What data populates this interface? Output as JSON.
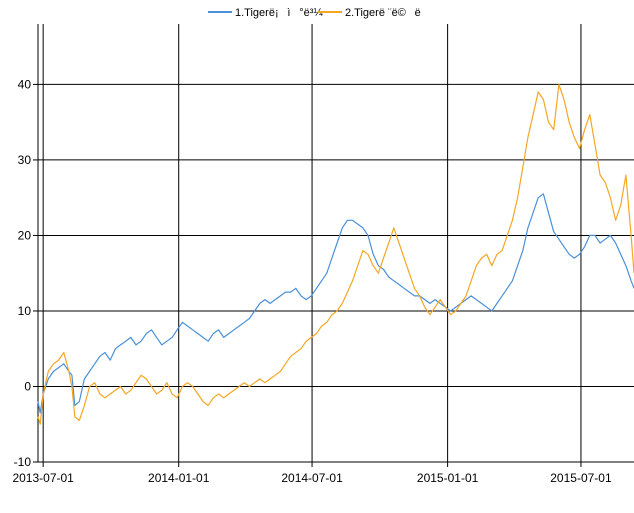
{
  "chart_data": {
    "type": "line",
    "title": "",
    "xlabel": "",
    "ylabel": "",
    "x_range": [
      "2013-06-24",
      "2015-09-11"
    ],
    "x_ticks": [
      "2013-07-01",
      "2014-01-01",
      "2014-07-01",
      "2015-01-01",
      "2015-07-01"
    ],
    "ylim": [
      -10,
      48
    ],
    "y_ticks": [
      -10,
      0,
      10,
      20,
      30,
      40
    ],
    "grid": true,
    "legend_position": "top-center",
    "series": [
      {
        "name": "1.Tigerë¡ì°ë³¼",
        "color": "#4a90d9",
        "points": [
          [
            "2013-06-24",
            -2
          ],
          [
            "2013-06-27",
            -3.5
          ],
          [
            "2013-07-01",
            -1
          ],
          [
            "2013-07-08",
            1
          ],
          [
            "2013-07-15",
            2
          ],
          [
            "2013-07-22",
            2.5
          ],
          [
            "2013-07-29",
            3
          ],
          [
            "2013-08-05",
            2
          ],
          [
            "2013-08-09",
            1.5
          ],
          [
            "2013-08-13",
            -2.5
          ],
          [
            "2013-08-19",
            -2
          ],
          [
            "2013-08-26",
            1
          ],
          [
            "2013-09-02",
            2
          ],
          [
            "2013-09-09",
            3
          ],
          [
            "2013-09-16",
            4
          ],
          [
            "2013-09-23",
            4.5
          ],
          [
            "2013-09-30",
            3.5
          ],
          [
            "2013-10-07",
            5
          ],
          [
            "2013-10-14",
            5.5
          ],
          [
            "2013-10-21",
            6
          ],
          [
            "2013-10-28",
            6.5
          ],
          [
            "2013-11-04",
            5.5
          ],
          [
            "2013-11-11",
            6
          ],
          [
            "2013-11-18",
            7
          ],
          [
            "2013-11-25",
            7.5
          ],
          [
            "2013-12-02",
            6.5
          ],
          [
            "2013-12-09",
            5.5
          ],
          [
            "2013-12-16",
            6
          ],
          [
            "2013-12-23",
            6.5
          ],
          [
            "2013-12-30",
            7.5
          ],
          [
            "2014-01-06",
            8.5
          ],
          [
            "2014-01-13",
            8
          ],
          [
            "2014-01-20",
            7.5
          ],
          [
            "2014-01-27",
            7
          ],
          [
            "2014-02-03",
            6.5
          ],
          [
            "2014-02-10",
            6
          ],
          [
            "2014-02-17",
            7
          ],
          [
            "2014-02-24",
            7.5
          ],
          [
            "2014-03-03",
            6.5
          ],
          [
            "2014-03-10",
            7
          ],
          [
            "2014-03-17",
            7.5
          ],
          [
            "2014-03-24",
            8
          ],
          [
            "2014-03-31",
            8.5
          ],
          [
            "2014-04-07",
            9
          ],
          [
            "2014-04-14",
            10
          ],
          [
            "2014-04-21",
            11
          ],
          [
            "2014-04-28",
            11.5
          ],
          [
            "2014-05-05",
            11
          ],
          [
            "2014-05-12",
            11.5
          ],
          [
            "2014-05-19",
            12
          ],
          [
            "2014-05-26",
            12.5
          ],
          [
            "2014-06-02",
            12.5
          ],
          [
            "2014-06-09",
            13
          ],
          [
            "2014-06-16",
            12
          ],
          [
            "2014-06-23",
            11.5
          ],
          [
            "2014-06-30",
            12
          ],
          [
            "2014-07-07",
            13
          ],
          [
            "2014-07-14",
            14
          ],
          [
            "2014-07-21",
            15
          ],
          [
            "2014-07-28",
            17
          ],
          [
            "2014-08-04",
            19
          ],
          [
            "2014-08-11",
            21
          ],
          [
            "2014-08-18",
            22
          ],
          [
            "2014-08-25",
            22
          ],
          [
            "2014-09-01",
            21.5
          ],
          [
            "2014-09-08",
            21
          ],
          [
            "2014-09-15",
            20
          ],
          [
            "2014-09-22",
            17.5
          ],
          [
            "2014-09-29",
            16
          ],
          [
            "2014-10-06",
            15.5
          ],
          [
            "2014-10-13",
            14.5
          ],
          [
            "2014-10-20",
            14
          ],
          [
            "2014-10-27",
            13.5
          ],
          [
            "2014-11-03",
            13
          ],
          [
            "2014-11-10",
            12.5
          ],
          [
            "2014-11-17",
            12
          ],
          [
            "2014-11-24",
            12
          ],
          [
            "2014-12-01",
            11.5
          ],
          [
            "2014-12-08",
            11
          ],
          [
            "2014-12-15",
            11.5
          ],
          [
            "2014-12-22",
            11
          ],
          [
            "2014-12-29",
            10.5
          ],
          [
            "2015-01-05",
            10
          ],
          [
            "2015-01-12",
            10.5
          ],
          [
            "2015-01-19",
            11
          ],
          [
            "2015-01-26",
            11.5
          ],
          [
            "2015-02-02",
            12
          ],
          [
            "2015-02-09",
            11.5
          ],
          [
            "2015-02-16",
            11
          ],
          [
            "2015-02-23",
            10.5
          ],
          [
            "2015-03-02",
            10
          ],
          [
            "2015-03-09",
            11
          ],
          [
            "2015-03-16",
            12
          ],
          [
            "2015-03-23",
            13
          ],
          [
            "2015-03-30",
            14
          ],
          [
            "2015-04-06",
            16
          ],
          [
            "2015-04-13",
            18
          ],
          [
            "2015-04-20",
            21
          ],
          [
            "2015-04-27",
            23
          ],
          [
            "2015-05-04",
            25
          ],
          [
            "2015-05-11",
            25.5
          ],
          [
            "2015-05-18",
            23
          ],
          [
            "2015-05-25",
            20.5
          ],
          [
            "2015-06-01",
            19.5
          ],
          [
            "2015-06-08",
            18.5
          ],
          [
            "2015-06-15",
            17.5
          ],
          [
            "2015-06-22",
            17
          ],
          [
            "2015-06-29",
            17.5
          ],
          [
            "2015-07-06",
            18.5
          ],
          [
            "2015-07-13",
            20
          ],
          [
            "2015-07-20",
            20
          ],
          [
            "2015-07-27",
            19
          ],
          [
            "2015-08-03",
            19.5
          ],
          [
            "2015-08-10",
            20
          ],
          [
            "2015-08-17",
            19
          ],
          [
            "2015-08-24",
            17.5
          ],
          [
            "2015-08-31",
            16
          ],
          [
            "2015-09-07",
            14
          ],
          [
            "2015-09-11",
            13
          ]
        ]
      },
      {
        "name": "2.Tigerë ¨ë©ë",
        "color": "#f5a623",
        "points": [
          [
            "2013-06-24",
            -4
          ],
          [
            "2013-06-27",
            -5
          ],
          [
            "2013-07-01",
            -1
          ],
          [
            "2013-07-08",
            2
          ],
          [
            "2013-07-15",
            3
          ],
          [
            "2013-07-22",
            3.5
          ],
          [
            "2013-07-29",
            4.5
          ],
          [
            "2013-08-05",
            2
          ],
          [
            "2013-08-09",
            0
          ],
          [
            "2013-08-13",
            -4
          ],
          [
            "2013-08-19",
            -4.5
          ],
          [
            "2013-08-26",
            -2.5
          ],
          [
            "2013-09-02",
            0
          ],
          [
            "2013-09-09",
            0.5
          ],
          [
            "2013-09-16",
            -1
          ],
          [
            "2013-09-23",
            -1.5
          ],
          [
            "2013-09-30",
            -1
          ],
          [
            "2013-10-07",
            -0.5
          ],
          [
            "2013-10-14",
            0
          ],
          [
            "2013-10-21",
            -1
          ],
          [
            "2013-10-28",
            -0.5
          ],
          [
            "2013-11-04",
            0.5
          ],
          [
            "2013-11-11",
            1.5
          ],
          [
            "2013-11-18",
            1
          ],
          [
            "2013-11-25",
            0
          ],
          [
            "2013-12-02",
            -1
          ],
          [
            "2013-12-09",
            -0.5
          ],
          [
            "2013-12-16",
            0.5
          ],
          [
            "2013-12-23",
            -1
          ],
          [
            "2013-12-30",
            -1.5
          ],
          [
            "2014-01-06",
            0
          ],
          [
            "2014-01-13",
            0.5
          ],
          [
            "2014-01-20",
            0
          ],
          [
            "2014-01-27",
            -1
          ],
          [
            "2014-02-03",
            -2
          ],
          [
            "2014-02-10",
            -2.5
          ],
          [
            "2014-02-17",
            -1.5
          ],
          [
            "2014-02-24",
            -1
          ],
          [
            "2014-03-03",
            -1.5
          ],
          [
            "2014-03-10",
            -1
          ],
          [
            "2014-03-17",
            -0.5
          ],
          [
            "2014-03-24",
            0
          ],
          [
            "2014-03-31",
            0.5
          ],
          [
            "2014-04-07",
            0
          ],
          [
            "2014-04-14",
            0.5
          ],
          [
            "2014-04-21",
            1
          ],
          [
            "2014-04-28",
            0.5
          ],
          [
            "2014-05-05",
            1
          ],
          [
            "2014-05-12",
            1.5
          ],
          [
            "2014-05-19",
            2
          ],
          [
            "2014-05-26",
            3
          ],
          [
            "2014-06-02",
            4
          ],
          [
            "2014-06-09",
            4.5
          ],
          [
            "2014-06-16",
            5
          ],
          [
            "2014-06-23",
            6
          ],
          [
            "2014-06-30",
            6.5
          ],
          [
            "2014-07-07",
            7
          ],
          [
            "2014-07-14",
            8
          ],
          [
            "2014-07-21",
            8.5
          ],
          [
            "2014-07-28",
            9.5
          ],
          [
            "2014-08-04",
            10
          ],
          [
            "2014-08-11",
            11
          ],
          [
            "2014-08-18",
            12.5
          ],
          [
            "2014-08-25",
            14
          ],
          [
            "2014-09-01",
            16
          ],
          [
            "2014-09-08",
            18
          ],
          [
            "2014-09-15",
            17.5
          ],
          [
            "2014-09-22",
            16
          ],
          [
            "2014-09-29",
            15
          ],
          [
            "2014-10-06",
            17
          ],
          [
            "2014-10-13",
            19
          ],
          [
            "2014-10-20",
            21
          ],
          [
            "2014-10-27",
            19
          ],
          [
            "2014-11-03",
            17
          ],
          [
            "2014-11-10",
            15
          ],
          [
            "2014-11-17",
            13
          ],
          [
            "2014-11-24",
            12
          ],
          [
            "2014-12-01",
            10.5
          ],
          [
            "2014-12-08",
            9.5
          ],
          [
            "2014-12-15",
            10.5
          ],
          [
            "2014-12-22",
            11.5
          ],
          [
            "2014-12-29",
            10.5
          ],
          [
            "2015-01-05",
            9.5
          ],
          [
            "2015-01-12",
            10
          ],
          [
            "2015-01-19",
            11
          ],
          [
            "2015-01-26",
            12
          ],
          [
            "2015-02-02",
            14
          ],
          [
            "2015-02-09",
            16
          ],
          [
            "2015-02-16",
            17
          ],
          [
            "2015-02-23",
            17.5
          ],
          [
            "2015-03-02",
            16
          ],
          [
            "2015-03-09",
            17.5
          ],
          [
            "2015-03-16",
            18
          ],
          [
            "2015-03-23",
            20
          ],
          [
            "2015-03-30",
            22
          ],
          [
            "2015-04-06",
            25
          ],
          [
            "2015-04-13",
            29
          ],
          [
            "2015-04-20",
            33
          ],
          [
            "2015-04-27",
            36
          ],
          [
            "2015-05-04",
            39
          ],
          [
            "2015-05-11",
            38
          ],
          [
            "2015-05-18",
            35
          ],
          [
            "2015-05-25",
            34
          ],
          [
            "2015-06-01",
            40
          ],
          [
            "2015-06-08",
            38
          ],
          [
            "2015-06-15",
            35
          ],
          [
            "2015-06-22",
            33
          ],
          [
            "2015-06-29",
            31.5
          ],
          [
            "2015-07-06",
            34
          ],
          [
            "2015-07-13",
            36
          ],
          [
            "2015-07-20",
            32
          ],
          [
            "2015-07-27",
            28
          ],
          [
            "2015-08-03",
            27
          ],
          [
            "2015-08-10",
            25
          ],
          [
            "2015-08-17",
            22
          ],
          [
            "2015-08-24",
            24
          ],
          [
            "2015-08-31",
            28
          ],
          [
            "2015-09-07",
            20
          ],
          [
            "2015-09-11",
            15
          ]
        ]
      }
    ]
  }
}
